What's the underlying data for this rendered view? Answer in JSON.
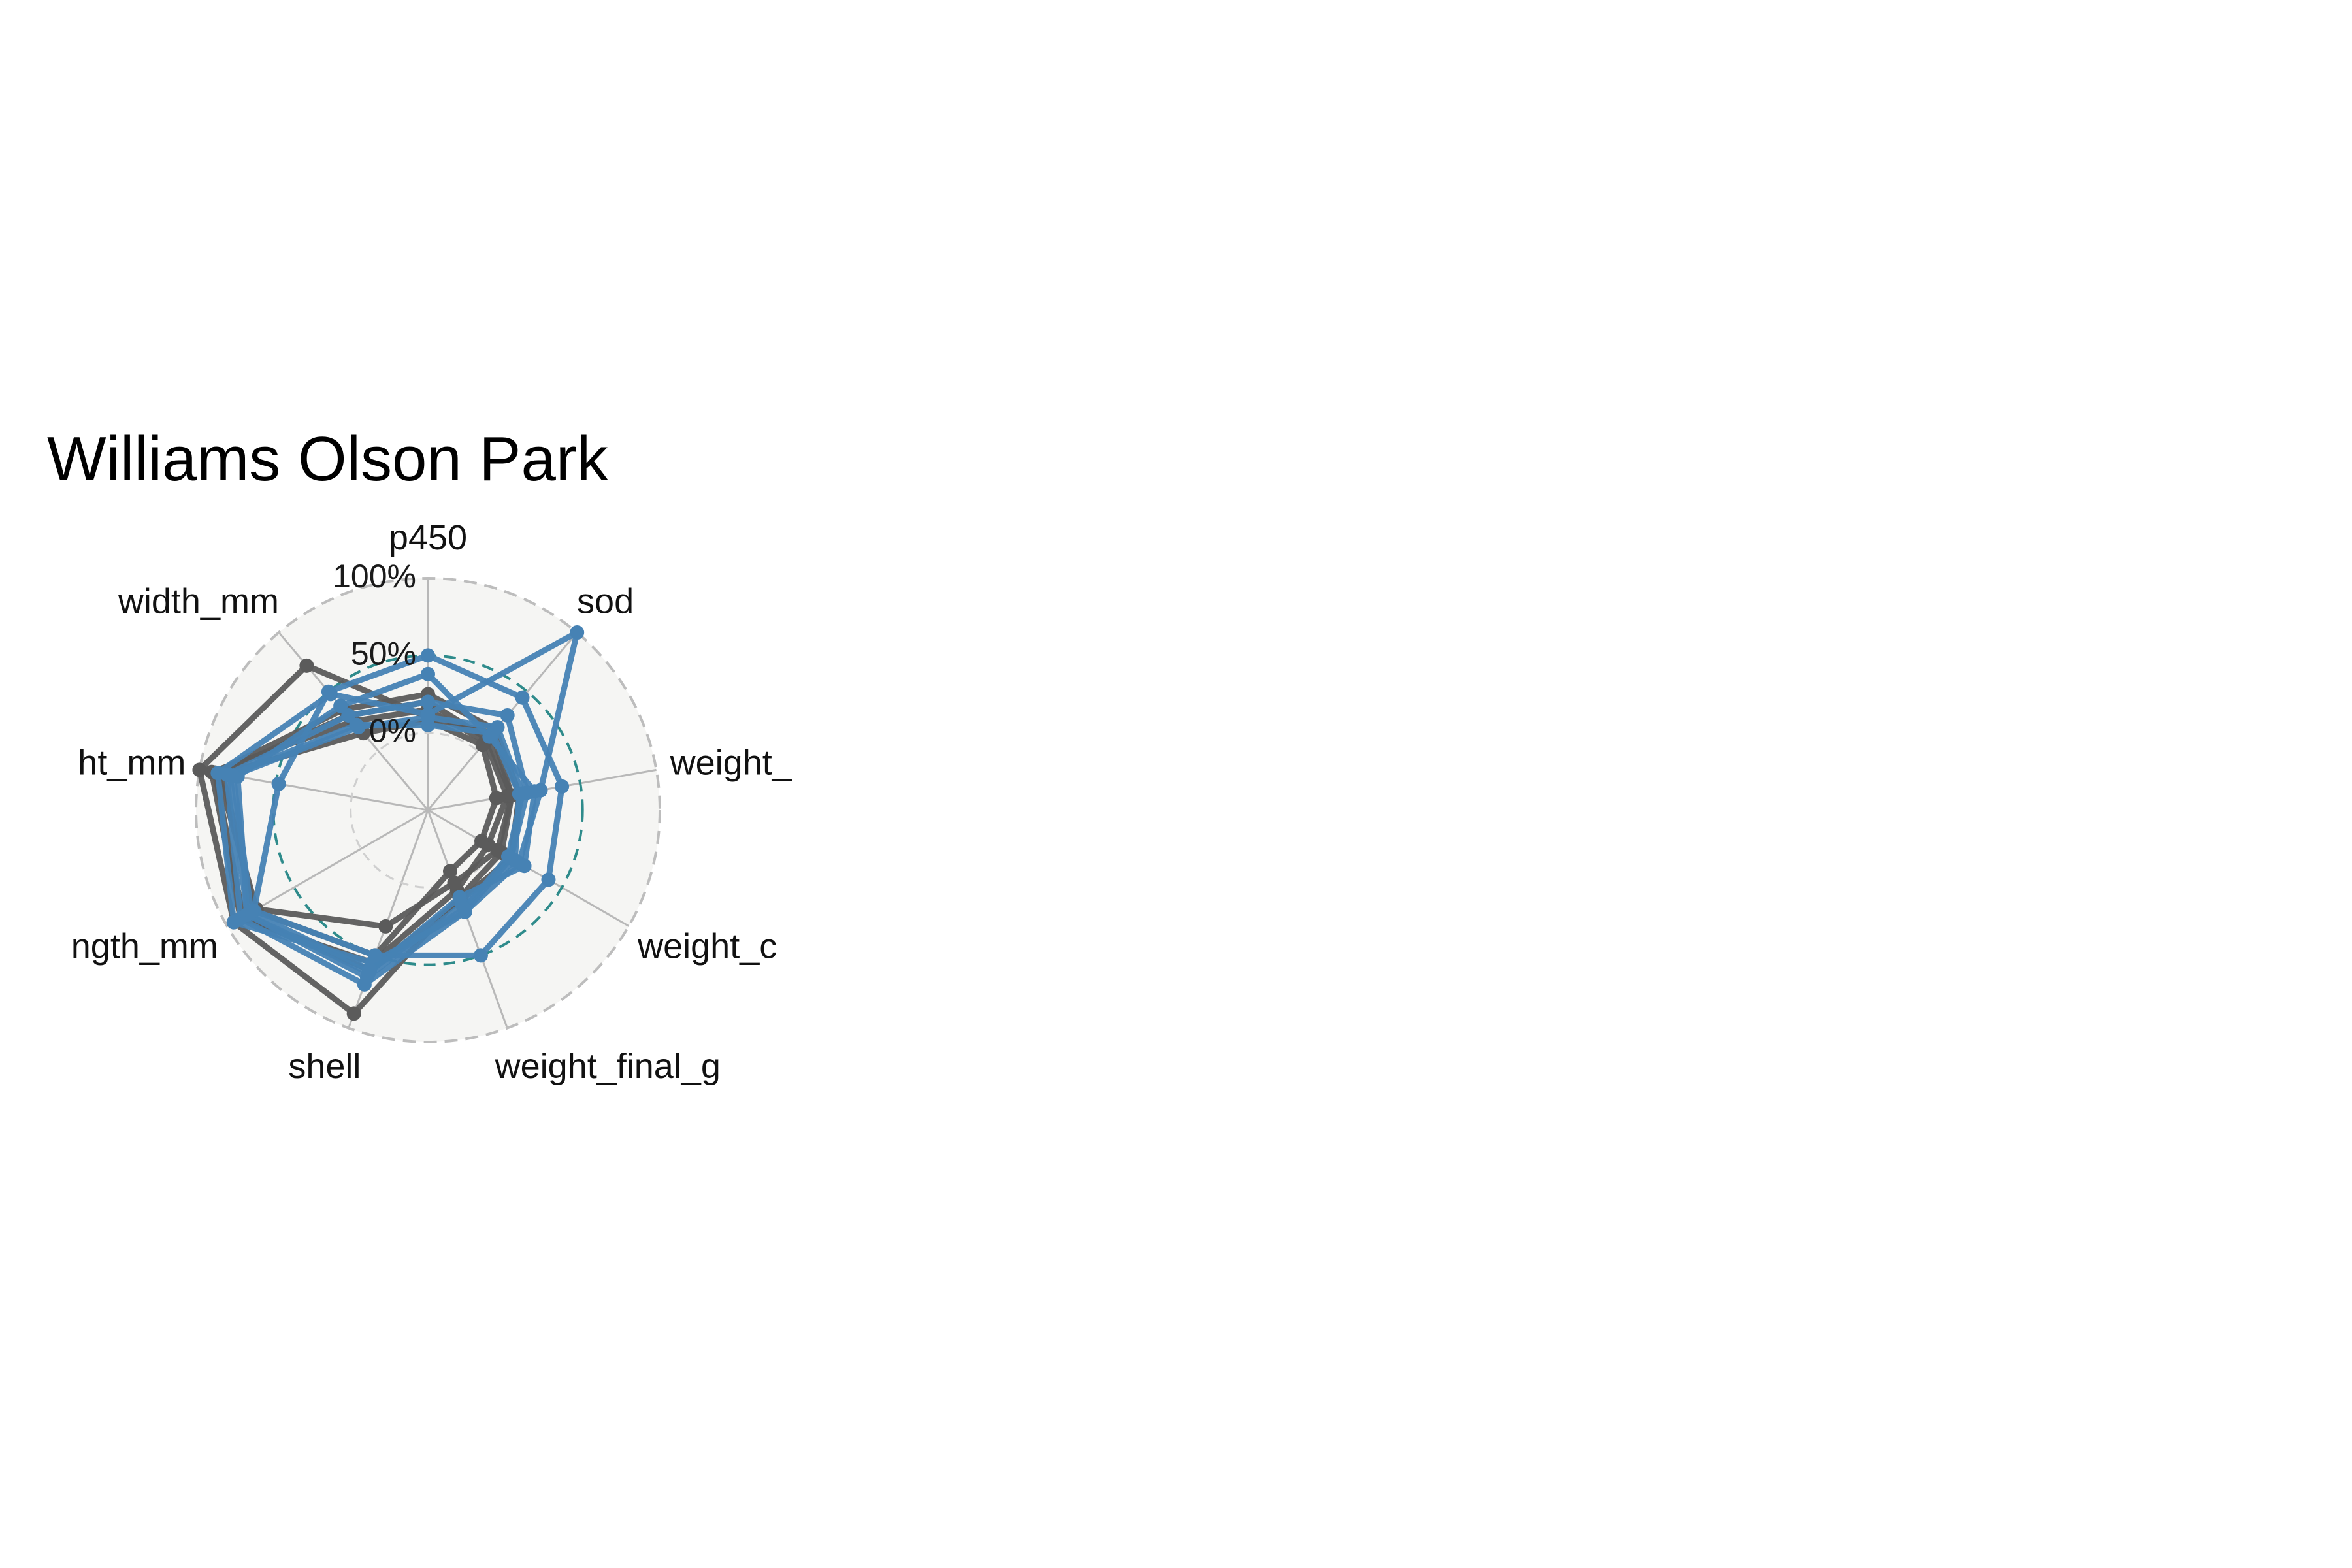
{
  "chart_data": {
    "type": "radar",
    "title": "Williams Olson Park",
    "axes": [
      "p450",
      "sod",
      "weight_",
      "weight_c",
      "weight_final_g",
      "shell",
      "ngth_mm",
      "ht_mm",
      "width_mm"
    ],
    "radial_tick_labels": [
      "0%",
      "50%",
      "100%"
    ],
    "radial_range": [
      -0.5,
      1.0
    ],
    "reference_circle": 0.5,
    "colors": {
      "blue": "#4682b4",
      "gray": "#5b5b5b",
      "reference": "#2e8b8b",
      "panel": "#f5f5f3",
      "grid": "#b8b8b8"
    },
    "series": [
      {
        "color": "blue",
        "values": [
          0.12,
          1.0,
          0.24,
          0.18,
          0.2,
          0.55,
          0.95,
          0.88,
          0.48
        ]
      },
      {
        "color": "blue",
        "values": [
          0.38,
          0.12,
          0.2,
          0.22,
          0.1,
          0.62,
          0.85,
          0.75,
          0.38
        ]
      },
      {
        "color": "blue",
        "values": [
          0.5,
          0.45,
          0.38,
          0.4,
          0.5,
          0.5,
          0.8,
          0.48,
          0.5
        ]
      },
      {
        "color": "blue",
        "values": [
          0.2,
          0.3,
          0.15,
          0.12,
          0.2,
          0.7,
          0.9,
          0.82,
          0.3
        ]
      },
      {
        "color": "blue",
        "values": [
          0.05,
          0.15,
          0.1,
          0.15,
          0.15,
          0.65,
          0.85,
          0.8,
          0.22
        ]
      },
      {
        "color": "blue",
        "values": [
          0.1,
          0.2,
          0.12,
          0.1,
          0.18,
          0.6,
          0.82,
          0.78,
          0.2
        ]
      },
      {
        "color": "gray",
        "values": [
          0.1,
          0.15,
          0.05,
          0.05,
          0.1,
          0.9,
          0.95,
          1.0,
          0.72
        ]
      },
      {
        "color": "gray",
        "values": [
          0.15,
          0.08,
          0.02,
          -0.05,
          0.05,
          0.55,
          0.9,
          0.92,
          0.25
        ]
      },
      {
        "color": "gray",
        "values": [
          0.2,
          0.1,
          0.05,
          0.02,
          0.0,
          0.3,
          0.78,
          0.88,
          0.3
        ]
      },
      {
        "color": "gray",
        "values": [
          0.08,
          0.05,
          -0.05,
          -0.1,
          -0.08,
          0.5,
          0.8,
          0.85,
          0.15
        ]
      },
      {
        "color": "gray",
        "values": [
          0.25,
          0.18,
          0.1,
          0.12,
          0.12,
          0.6,
          0.88,
          0.9,
          0.35
        ]
      }
    ]
  }
}
